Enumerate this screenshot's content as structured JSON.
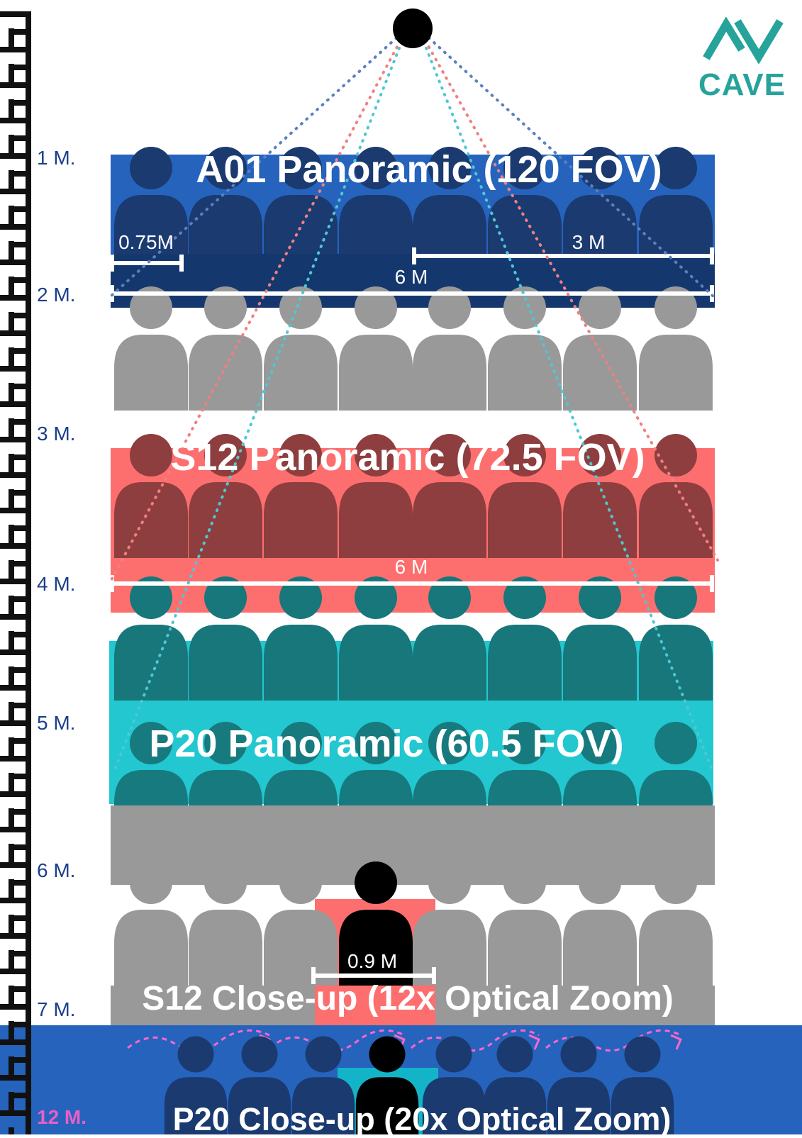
{
  "logo": {
    "text": "CAVE",
    "color": "#26a39a"
  },
  "ruler": {
    "labels": [
      "1 M.",
      "2 M.",
      "3 M.",
      "4 M.",
      "5 M.",
      "6 M.",
      "7 M.",
      "12 M."
    ]
  },
  "bands": {
    "a01": {
      "title": "A01 Panoramic (120 FOV)",
      "color": "#2563bd"
    },
    "s12": {
      "title": "S12 Panoramic (72.5 FOV)",
      "color": "#fd6f6f"
    },
    "p20": {
      "title": "P20 Panoramic (60.5 FOV)",
      "color": "#22c7d0"
    },
    "s12_closeup": {
      "title": "S12 Close-up (12x Optical Zoom)"
    },
    "p20_closeup": {
      "title": "P20 Close-up (20x Optical Zoom)"
    }
  },
  "measurements": {
    "a01_small": "0.75M",
    "a01_half": "3 M",
    "a01_full": "6 M",
    "s12_full": "6 M",
    "closeup": "0.9 M"
  },
  "fov_lines": [
    {
      "name": "A01",
      "color": "#5b7fc0"
    },
    {
      "name": "S12",
      "color": "#f08080"
    },
    {
      "name": "P20",
      "color": "#4fc7d3"
    }
  ]
}
